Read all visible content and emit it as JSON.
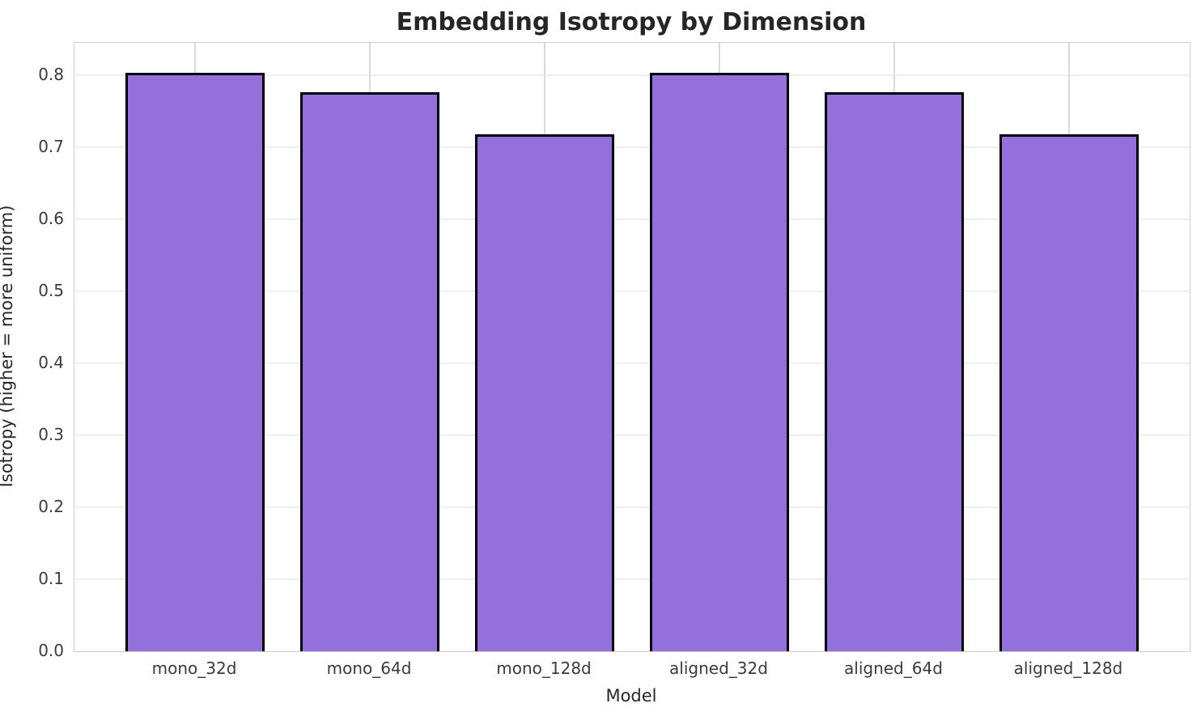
{
  "chart_data": {
    "type": "bar",
    "title": "Embedding Isotropy by Dimension",
    "xlabel": "Model",
    "ylabel": "Isotropy (higher = more uniform)",
    "categories": [
      "mono_32d",
      "mono_64d",
      "mono_128d",
      "aligned_32d",
      "aligned_64d",
      "aligned_128d"
    ],
    "values": [
      0.803,
      0.777,
      0.718,
      0.803,
      0.777,
      0.718
    ],
    "ylim": [
      0,
      0.845
    ],
    "yticks": [
      0.0,
      0.1,
      0.2,
      0.3,
      0.4,
      0.5,
      0.6,
      0.7,
      0.8
    ],
    "ytick_labels": [
      "0.0",
      "0.1",
      "0.2",
      "0.3",
      "0.4",
      "0.5",
      "0.6",
      "0.7",
      "0.8"
    ],
    "grid": true,
    "legend": "none",
    "bar_color": "#9370DB",
    "bar_edge_color": "#000000"
  }
}
